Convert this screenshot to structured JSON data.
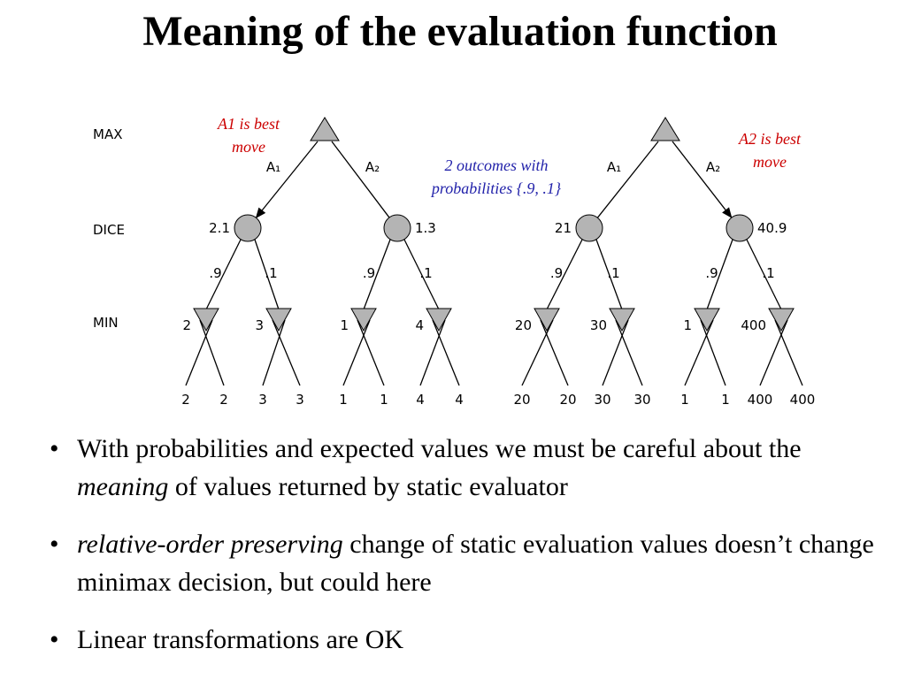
{
  "title": "Meaning of the evaluation function",
  "annotations": {
    "a1_best": "A1 is best move",
    "a2_best": "A2 is best move",
    "outcomes": "2 outcomes with probabilities  {.9, .1}"
  },
  "levels": [
    "MAX",
    "DICE",
    "MIN"
  ],
  "trees": [
    {
      "actions": [
        "A₁",
        "A₂"
      ],
      "dice_values": [
        "2.1",
        "1.3"
      ],
      "probabilities": [
        ".9",
        ".1",
        ".9",
        ".1"
      ],
      "min_values": [
        "2",
        "3",
        "1",
        "4"
      ],
      "leaf_values": [
        "2",
        "2",
        "3",
        "3",
        "1",
        "1",
        "4",
        "4"
      ]
    },
    {
      "actions": [
        "A₁",
        "A₂"
      ],
      "dice_values": [
        "21",
        "40.9"
      ],
      "probabilities": [
        ".9",
        ".1",
        ".9",
        ".1"
      ],
      "min_values": [
        "20",
        "30",
        "1",
        "400"
      ],
      "leaf_values": [
        "20",
        "20",
        "30",
        "30",
        "1",
        "1",
        "400",
        "400"
      ]
    }
  ],
  "bullets": [
    {
      "pre": "With probabilities and expected values we must be careful about the ",
      "em": "meaning",
      "post": " of values returned by static evaluator"
    },
    {
      "pre": "",
      "em": "relative-order preserving",
      "post": " change of static evaluation values doesn’t change minimax decision, but could here"
    },
    {
      "pre": "Linear transformations are OK",
      "em": "",
      "post": ""
    }
  ],
  "bullet_symbol": "•",
  "colors": {
    "node_fill": "#b4b4b4",
    "annotation_red": "#cc0000",
    "annotation_blue": "#2222aa"
  }
}
